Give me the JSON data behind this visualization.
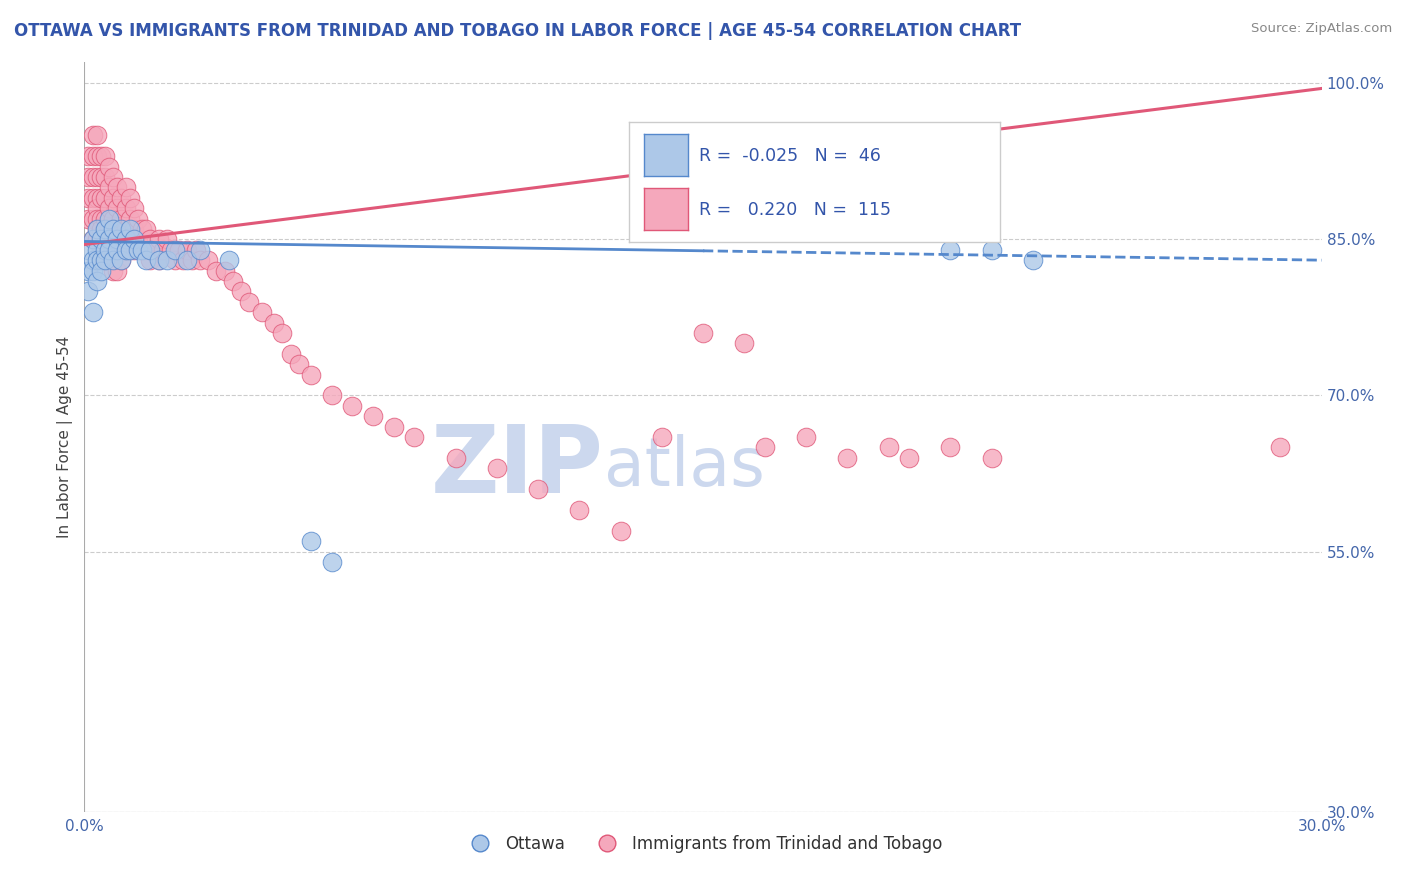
{
  "title": "OTTAWA VS IMMIGRANTS FROM TRINIDAD AND TOBAGO IN LABOR FORCE | AGE 45-54 CORRELATION CHART",
  "source": "Source: ZipAtlas.com",
  "ylabel": "In Labor Force | Age 45-54",
  "xlim": [
    0.0,
    0.3
  ],
  "ylim": [
    0.3,
    1.02
  ],
  "xticks": [
    0.0,
    0.05,
    0.1,
    0.15,
    0.2,
    0.25,
    0.3
  ],
  "xtick_labels": [
    "0.0%",
    "",
    "",
    "",
    "",
    "",
    "30.0%"
  ],
  "ytick_positions": [
    0.3,
    0.55,
    0.7,
    0.85,
    1.0
  ],
  "ytick_labels": [
    "30.0%",
    "55.0%",
    "70.0%",
    "85.0%",
    "100.0%"
  ],
  "R_ottawa": -0.025,
  "N_ottawa": 46,
  "R_immigrants": 0.22,
  "N_immigrants": 115,
  "ottawa_color": "#adc8e8",
  "immigrants_color": "#f5a8bc",
  "trend_ottawa_color": "#5588cc",
  "trend_immigrants_color": "#e05878",
  "watermark_zip": "ZIP",
  "watermark_atlas": "atlas",
  "watermark_color": "#ccd8ee",
  "legend_label_ottawa": "Ottawa",
  "legend_label_immigrants": "Immigrants from Trinidad and Tobago",
  "trend_imm_x0": 0.0,
  "trend_imm_y0": 0.845,
  "trend_imm_x1": 0.3,
  "trend_imm_y1": 0.995,
  "trend_ott_x0": 0.0,
  "trend_ott_y0": 0.848,
  "trend_ott_x1": 0.3,
  "trend_ott_y1": 0.83,
  "trend_ott_solid_end": 0.15,
  "ottawa_x": [
    0.001,
    0.001,
    0.001,
    0.002,
    0.002,
    0.002,
    0.002,
    0.003,
    0.003,
    0.003,
    0.003,
    0.004,
    0.004,
    0.004,
    0.005,
    0.005,
    0.005,
    0.006,
    0.006,
    0.006,
    0.007,
    0.007,
    0.008,
    0.008,
    0.009,
    0.009,
    0.01,
    0.01,
    0.011,
    0.011,
    0.012,
    0.013,
    0.014,
    0.015,
    0.016,
    0.018,
    0.02,
    0.022,
    0.025,
    0.028,
    0.035,
    0.055,
    0.06,
    0.21,
    0.22,
    0.23
  ],
  "ottawa_y": [
    0.84,
    0.82,
    0.8,
    0.85,
    0.83,
    0.82,
    0.78,
    0.86,
    0.84,
    0.83,
    0.81,
    0.85,
    0.83,
    0.82,
    0.86,
    0.84,
    0.83,
    0.87,
    0.85,
    0.84,
    0.86,
    0.83,
    0.85,
    0.84,
    0.86,
    0.83,
    0.85,
    0.84,
    0.86,
    0.84,
    0.85,
    0.84,
    0.84,
    0.83,
    0.84,
    0.83,
    0.83,
    0.84,
    0.83,
    0.84,
    0.83,
    0.56,
    0.54,
    0.84,
    0.84,
    0.83
  ],
  "immigrants_x": [
    0.001,
    0.001,
    0.001,
    0.001,
    0.002,
    0.002,
    0.002,
    0.002,
    0.002,
    0.002,
    0.003,
    0.003,
    0.003,
    0.003,
    0.003,
    0.003,
    0.003,
    0.003,
    0.004,
    0.004,
    0.004,
    0.004,
    0.004,
    0.004,
    0.005,
    0.005,
    0.005,
    0.005,
    0.005,
    0.005,
    0.005,
    0.006,
    0.006,
    0.006,
    0.006,
    0.006,
    0.007,
    0.007,
    0.007,
    0.007,
    0.007,
    0.007,
    0.008,
    0.008,
    0.008,
    0.008,
    0.008,
    0.009,
    0.009,
    0.009,
    0.009,
    0.01,
    0.01,
    0.01,
    0.01,
    0.011,
    0.011,
    0.011,
    0.012,
    0.012,
    0.012,
    0.013,
    0.013,
    0.014,
    0.014,
    0.015,
    0.015,
    0.016,
    0.016,
    0.017,
    0.018,
    0.018,
    0.019,
    0.02,
    0.021,
    0.022,
    0.023,
    0.024,
    0.025,
    0.026,
    0.027,
    0.028,
    0.03,
    0.032,
    0.034,
    0.036,
    0.038,
    0.04,
    0.043,
    0.046,
    0.048,
    0.05,
    0.052,
    0.055,
    0.06,
    0.065,
    0.07,
    0.075,
    0.08,
    0.09,
    0.1,
    0.11,
    0.12,
    0.13,
    0.14,
    0.15,
    0.16,
    0.165,
    0.175,
    0.185,
    0.195,
    0.2,
    0.21,
    0.22,
    0.29
  ],
  "immigrants_y": [
    0.93,
    0.91,
    0.89,
    0.87,
    0.95,
    0.93,
    0.91,
    0.89,
    0.87,
    0.85,
    0.95,
    0.93,
    0.91,
    0.89,
    0.88,
    0.87,
    0.86,
    0.85,
    0.93,
    0.91,
    0.89,
    0.87,
    0.86,
    0.84,
    0.93,
    0.91,
    0.89,
    0.87,
    0.86,
    0.84,
    0.83,
    0.92,
    0.9,
    0.88,
    0.86,
    0.84,
    0.91,
    0.89,
    0.87,
    0.85,
    0.83,
    0.82,
    0.9,
    0.88,
    0.86,
    0.84,
    0.82,
    0.89,
    0.87,
    0.85,
    0.83,
    0.9,
    0.88,
    0.86,
    0.84,
    0.89,
    0.87,
    0.85,
    0.88,
    0.86,
    0.84,
    0.87,
    0.85,
    0.86,
    0.84,
    0.86,
    0.84,
    0.85,
    0.83,
    0.84,
    0.85,
    0.83,
    0.84,
    0.85,
    0.84,
    0.83,
    0.84,
    0.83,
    0.84,
    0.83,
    0.84,
    0.83,
    0.83,
    0.82,
    0.82,
    0.81,
    0.8,
    0.79,
    0.78,
    0.77,
    0.76,
    0.74,
    0.73,
    0.72,
    0.7,
    0.69,
    0.68,
    0.67,
    0.66,
    0.64,
    0.63,
    0.61,
    0.59,
    0.57,
    0.66,
    0.76,
    0.75,
    0.65,
    0.66,
    0.64,
    0.65,
    0.64,
    0.65,
    0.64,
    0.65
  ]
}
